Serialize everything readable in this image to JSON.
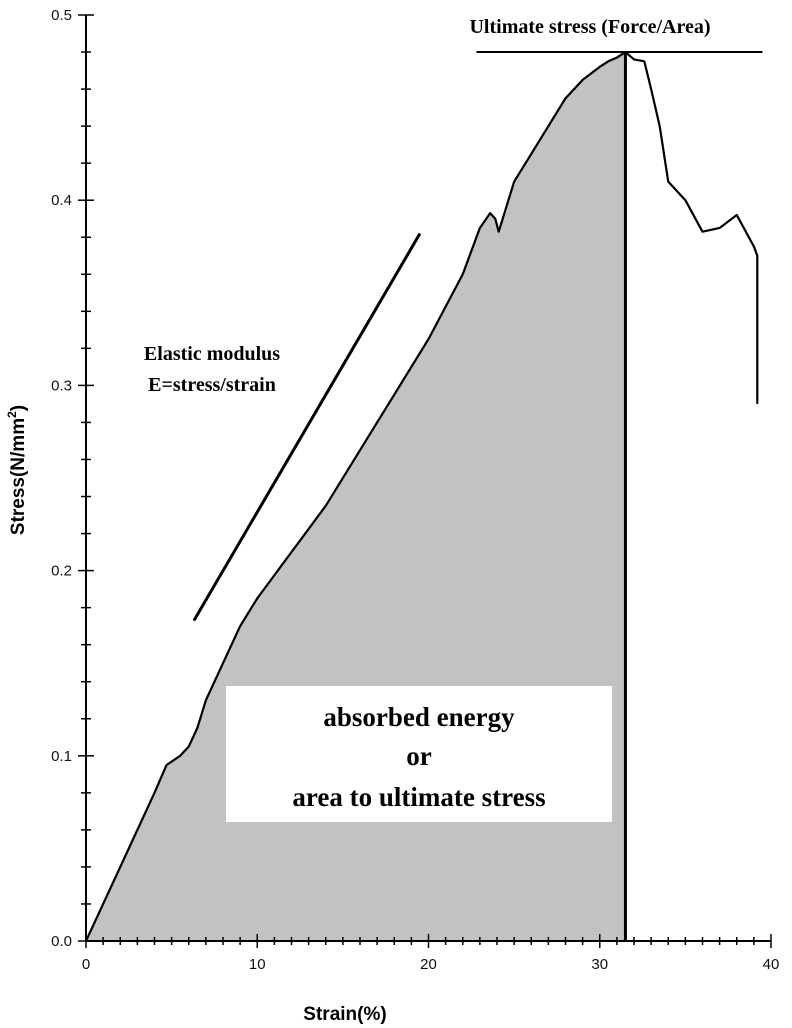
{
  "chart_data": {
    "type": "area",
    "xlabel": "Strain(%)",
    "ylabel_main": "Stress(N/mm",
    "ylabel_sup": "2",
    "ylabel_close": ")",
    "xlim": [
      0,
      40
    ],
    "ylim": [
      0,
      0.5
    ],
    "x_ticks": [
      0,
      10,
      20,
      30,
      40
    ],
    "x_tick_labels": [
      "0",
      "10",
      "20",
      "30",
      "40"
    ],
    "y_ticks": [
      0.0,
      0.1,
      0.2,
      0.3,
      0.4,
      0.5
    ],
    "y_tick_labels": [
      "0.0",
      "0.1",
      "0.2",
      "0.3",
      "0.4",
      "0.5"
    ],
    "grid": false,
    "series": [
      {
        "x": [
          0,
          1,
          2,
          3,
          4,
          4.7,
          5.5,
          6,
          6.5,
          7,
          8,
          9,
          10,
          12,
          14,
          16,
          18,
          20,
          22,
          23,
          23.6,
          23.9,
          24.1,
          25,
          26,
          27,
          28,
          29,
          30,
          30.5,
          31,
          31.5,
          32,
          32.6,
          33,
          33.5,
          34,
          35,
          36,
          37,
          38,
          39,
          39.2,
          39.2
        ],
        "y": [
          0,
          0.02,
          0.04,
          0.06,
          0.08,
          0.095,
          0.1,
          0.105,
          0.115,
          0.13,
          0.15,
          0.17,
          0.185,
          0.21,
          0.235,
          0.265,
          0.295,
          0.325,
          0.36,
          0.385,
          0.393,
          0.39,
          0.383,
          0.41,
          0.425,
          0.44,
          0.455,
          0.465,
          0.472,
          0.475,
          0.477,
          0.48,
          0.476,
          0.475,
          0.46,
          0.44,
          0.41,
          0.4,
          0.383,
          0.385,
          0.392,
          0.375,
          0.37,
          0.29
        ]
      }
    ],
    "shaded_area": {
      "from_x": 0,
      "to_x": 31.5,
      "color": "#c2c2c2",
      "label_lines": [
        "absorbed energy",
        "or",
        "area to ultimate stress"
      ]
    },
    "ultimate_stress": {
      "x": 31.5,
      "y": 0.48,
      "line_x_range": [
        22.8,
        39.5
      ],
      "label": "Ultimate stress (Force/Area)"
    },
    "elastic_modulus": {
      "label_lines": [
        "Elastic modulus",
        "E=stress/strain"
      ],
      "line": {
        "x": [
          6.3,
          19.5
        ],
        "y": [
          0.173,
          0.382
        ]
      }
    },
    "colors": {
      "fill": "#c2c2c2",
      "line": "#000000",
      "label_box": "#ffffff"
    }
  }
}
